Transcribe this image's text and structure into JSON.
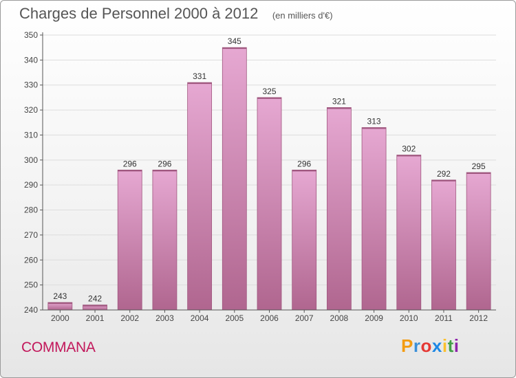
{
  "title": "Charges de Personnel 2000 à 2012",
  "subtitle": "(en milliers d'€)",
  "commune": "COMMANA",
  "logo": {
    "text": "Proxiti",
    "letters": [
      {
        "ch": "P",
        "color": "#f39c12"
      },
      {
        "ch": "r",
        "color": "#3a8fd8"
      },
      {
        "ch": "o",
        "color": "#e53935"
      },
      {
        "ch": "x",
        "color": "#1e88e5"
      },
      {
        "ch": "i",
        "color": "#fbc02d"
      },
      {
        "ch": "t",
        "color": "#43a047"
      },
      {
        "ch": "i",
        "color": "#8e24aa"
      }
    ]
  },
  "colors": {
    "bar_top": "#e6a8d2",
    "bar_bottom": "#b0668f",
    "bar_edge": "#a0577f",
    "axis": "#555555",
    "grid": "#dddddd",
    "commune": "#c2185b"
  },
  "chart_data": {
    "type": "bar",
    "categories": [
      "2000",
      "2001",
      "2002",
      "2003",
      "2004",
      "2005",
      "2006",
      "2007",
      "2008",
      "2009",
      "2010",
      "2011",
      "2012"
    ],
    "values": [
      243,
      242,
      296,
      296,
      331,
      345,
      325,
      296,
      321,
      313,
      302,
      292,
      295
    ],
    "data_labels": [
      "243",
      "242",
      "296",
      "296",
      "331",
      "345",
      "325",
      "296",
      "321",
      "313",
      "302",
      "292",
      "295"
    ],
    "title": "Charges de Personnel 2000 à 2012",
    "unit": "(en milliers d'€)",
    "xlabel": "",
    "ylabel": "",
    "ylim": [
      240,
      350
    ],
    "yticks": [
      240,
      250,
      260,
      270,
      280,
      290,
      300,
      310,
      320,
      330,
      340,
      350
    ],
    "grid": true,
    "legend": false
  }
}
